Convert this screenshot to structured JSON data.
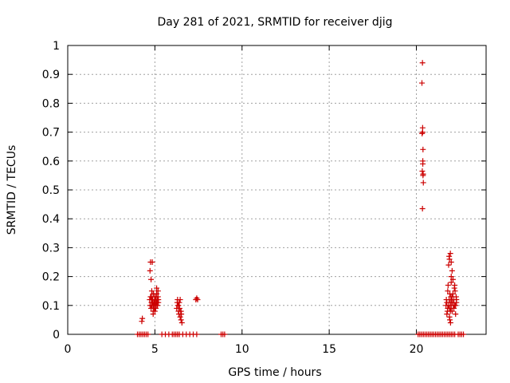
{
  "chart_data": {
    "type": "scatter",
    "title": "Day 281 of 2021, SRMTID for receiver djig",
    "xlabel": "GPS time / hours",
    "ylabel": "SRMTID / TECUs",
    "xlim": [
      0,
      24
    ],
    "ylim": [
      0,
      1
    ],
    "xticks": [
      0,
      5,
      10,
      15,
      20
    ],
    "xtick_labels": [
      "0",
      "5",
      "10",
      "15",
      "20"
    ],
    "yticks": [
      0,
      0.1,
      0.2,
      0.3,
      0.4,
      0.5,
      0.6,
      0.7,
      0.8,
      0.9,
      1
    ],
    "ytick_labels": [
      "0",
      "0.1",
      "0.2",
      "0.3",
      "0.4",
      "0.5",
      "0.6",
      "0.7",
      "0.8",
      "0.9",
      "1"
    ],
    "grid": true,
    "marker": "+",
    "series": [
      {
        "name": "SRMTID",
        "color": "#cc0000",
        "x": [
          4.0,
          4.1,
          4.2,
          4.3,
          4.4,
          4.5,
          4.6,
          4.25,
          4.28,
          4.7,
          4.72,
          4.75,
          4.78,
          4.8,
          4.82,
          4.85,
          4.88,
          4.9,
          4.92,
          4.95,
          4.98,
          5.0,
          5.02,
          5.05,
          5.08,
          5.1,
          5.12,
          5.15,
          5.18,
          5.2,
          4.72,
          4.75,
          4.78,
          4.8,
          4.82,
          4.85,
          4.88,
          4.9,
          4.92,
          4.95,
          4.98,
          5.0,
          5.02,
          5.05,
          5.08,
          5.1,
          5.12,
          5.15,
          5.18,
          5.2,
          4.9,
          5.0,
          5.1,
          4.85,
          5.4,
          5.6,
          5.8,
          6.0,
          6.1,
          6.2,
          6.3,
          6.4,
          6.6,
          6.8,
          7.0,
          7.2,
          7.4,
          6.25,
          6.28,
          6.3,
          6.32,
          6.35,
          6.38,
          6.4,
          6.42,
          6.45,
          6.48,
          6.5,
          6.52,
          6.55,
          6.35,
          6.45,
          6.5,
          7.35,
          7.4,
          7.45,
          8.8,
          8.9,
          9.0,
          20.1,
          20.2,
          20.3,
          20.4,
          20.5,
          20.6,
          20.7,
          20.8,
          20.9,
          21.0,
          21.1,
          21.2,
          21.3,
          21.4,
          21.5,
          21.6,
          21.7,
          21.8,
          21.9,
          22.0,
          22.1,
          22.2,
          22.4,
          22.5,
          22.6,
          22.7,
          20.35,
          20.32,
          20.36,
          20.33,
          20.38,
          20.37,
          20.34,
          20.39,
          20.4,
          20.35,
          20.36,
          20.38,
          20.37,
          21.7,
          21.72,
          21.75,
          21.78,
          21.8,
          21.82,
          21.85,
          21.88,
          21.9,
          21.92,
          21.95,
          21.98,
          22.0,
          22.02,
          22.05,
          22.08,
          22.1,
          22.12,
          22.15,
          22.18,
          22.2,
          22.22,
          22.25,
          22.28,
          22.3,
          21.75,
          21.8,
          21.85,
          21.9,
          21.95,
          22.0,
          22.05,
          22.1,
          22.15,
          22.2,
          22.25,
          22.3,
          21.88,
          21.92,
          21.96,
          22.0,
          21.9,
          21.95,
          22.0,
          22.05,
          21.98
        ],
        "y": [
          0,
          0,
          0,
          0,
          0,
          0,
          0,
          0.045,
          0.055,
          0.12,
          0.1,
          0.13,
          0.09,
          0.11,
          0.15,
          0.1,
          0.12,
          0.08,
          0.14,
          0.11,
          0.1,
          0.13,
          0.12,
          0.09,
          0.11,
          0.14,
          0.1,
          0.12,
          0.15,
          0.11,
          0.22,
          0.25,
          0.19,
          0.13,
          0.1,
          0.12,
          0.11,
          0.14,
          0.1,
          0.09,
          0.12,
          0.11,
          0.13,
          0.1,
          0.12,
          0.14,
          0.11,
          0.1,
          0.13,
          0.12,
          0.07,
          0.08,
          0.16,
          0.25,
          0,
          0,
          0,
          0,
          0,
          0,
          0,
          0,
          0,
          0,
          0,
          0,
          0,
          0.09,
          0.11,
          0.12,
          0.1,
          0.08,
          0.07,
          0.11,
          0.09,
          0.06,
          0.08,
          0.05,
          0.07,
          0.04,
          0.1,
          0.12,
          0.08,
          0.12,
          0.125,
          0.12,
          0,
          0,
          0,
          0,
          0,
          0,
          0,
          0,
          0,
          0,
          0,
          0,
          0,
          0,
          0,
          0,
          0,
          0,
          0,
          0,
          0,
          0,
          0,
          0,
          0,
          0,
          0,
          0,
          0,
          0.94,
          0.87,
          0.715,
          0.695,
          0.64,
          0.6,
          0.565,
          0.555,
          0.525,
          0.435,
          0.7,
          0.55,
          0.59,
          0.1,
          0.12,
          0.11,
          0.08,
          0.15,
          0.17,
          0.1,
          0.12,
          0.09,
          0.14,
          0.11,
          0.13,
          0.1,
          0.12,
          0.08,
          0.11,
          0.14,
          0.1,
          0.12,
          0.16,
          0.17,
          0.15,
          0.1,
          0.13,
          0.12,
          0.07,
          0.09,
          0.24,
          0.26,
          0.28,
          0.25,
          0.22,
          0.19,
          0.09,
          0.1,
          0.07,
          0.11,
          0.27,
          0.05,
          0.04,
          0.18,
          0.06,
          0.08,
          0.2,
          0.13,
          0.09
        ]
      }
    ]
  }
}
